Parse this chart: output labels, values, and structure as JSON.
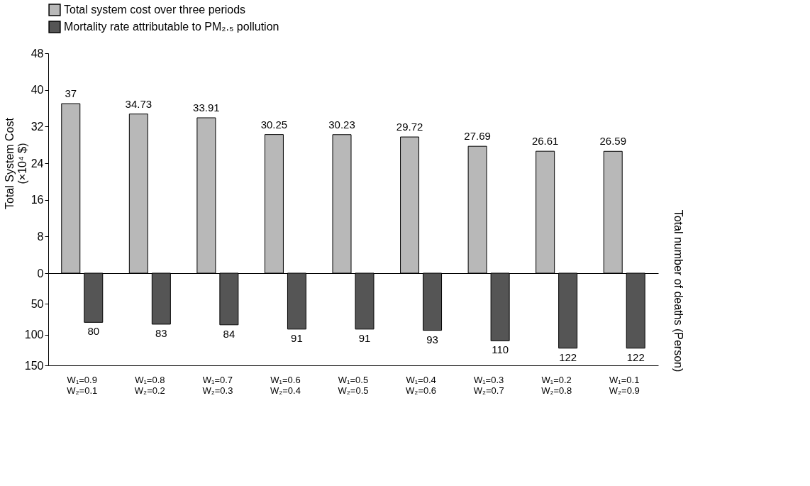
{
  "chart_data": [
    {
      "type": "bar",
      "categories": [
        null,
        null,
        null,
        null,
        null,
        null,
        null,
        null,
        null
      ],
      "series": [
        {
          "name": "Total system cost over three periods",
          "color": "#b8b8b8",
          "values": [
            37,
            34.73,
            33.91,
            30.25,
            30.23,
            29.72,
            27.69,
            26.61,
            26.59
          ]
        }
      ],
      "ylim": [
        0,
        48
      ],
      "yticks": [
        8,
        16,
        24,
        32,
        40,
        48
      ],
      "ylabel": "Total System Cost\n(×10⁴ $)",
      "data_labels": true,
      "legend": "top",
      "tick_labels": "y"
    },
    {
      "type": "bar",
      "categories": [
        "W₁=0.9\nW₂=0.1",
        "W₁=0.8\nW₂=0.2",
        "W₁=0.7\nW₂=0.3",
        "W₁=0.6\nW₂=0.4",
        "W₁=0.5\nW₂=0.5",
        "W₁=0.4\nW₂=0.6",
        "W₁=0.3\nW₂=0.7",
        "W₁=0.2\nW₂=0.8",
        "W₁=0.1\nW₂=0.9"
      ],
      "series": [
        {
          "name": "Mortality rate attributable to PM₂.₅ pollution",
          "color": "#555555",
          "values": [
            80,
            83,
            84,
            91,
            91,
            93,
            110,
            122,
            122
          ]
        }
      ],
      "ylim": [
        150,
        0
      ],
      "yticks": [
        0,
        50,
        100,
        150
      ],
      "ylabel": "Total number of deaths (Person)",
      "data_labels": true,
      "legend": "top"
    }
  ]
}
